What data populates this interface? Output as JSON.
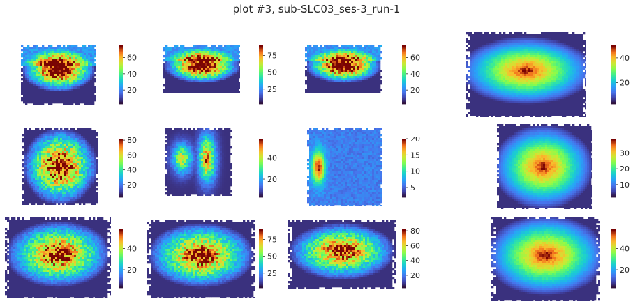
{
  "title": "plot #3, sub-SLC03_ses-3_run-1",
  "colormap": "turbo",
  "chart_data": [
    {
      "type": "heatmap",
      "title": "",
      "colorbar_range": [
        3,
        75
      ],
      "colorbar_ticks": [
        20,
        40,
        60
      ],
      "shape": "sagittal"
    },
    {
      "type": "heatmap",
      "title": "",
      "colorbar_range": [
        3,
        90
      ],
      "colorbar_ticks": [
        25,
        50,
        75
      ],
      "shape": "sagittal"
    },
    {
      "type": "heatmap",
      "title": "",
      "colorbar_range": [
        3,
        75
      ],
      "colorbar_ticks": [
        20,
        40,
        60
      ],
      "shape": "sagittal"
    },
    {
      "type": "heatmap",
      "title": "",
      "colorbar_range": [
        3,
        50
      ],
      "colorbar_ticks": [
        20,
        40
      ],
      "shape": "sagittal-blur"
    },
    {
      "type": "heatmap",
      "title": "",
      "colorbar_range": [
        3,
        82
      ],
      "colorbar_ticks": [
        20,
        40,
        60,
        80
      ],
      "shape": "coronal"
    },
    {
      "type": "heatmap",
      "title": "",
      "colorbar_range": [
        3,
        58
      ],
      "colorbar_ticks": [
        20,
        40
      ],
      "shape": "split"
    },
    {
      "type": "heatmap",
      "title": "",
      "colorbar_range": [
        2,
        20
      ],
      "colorbar_ticks": [
        5,
        10,
        15,
        20
      ],
      "shape": "sparse"
    },
    {
      "type": "heatmap",
      "title": "",
      "colorbar_range": [
        2,
        39
      ],
      "colorbar_ticks": [
        10,
        20,
        30
      ],
      "shape": "coronal-blur"
    },
    {
      "type": "heatmap",
      "title": "",
      "colorbar_range": [
        3,
        58
      ],
      "colorbar_ticks": [
        20,
        40
      ],
      "shape": "axial"
    },
    {
      "type": "heatmap",
      "title": "",
      "colorbar_range": [
        3,
        90
      ],
      "colorbar_ticks": [
        25,
        50,
        75
      ],
      "shape": "axial"
    },
    {
      "type": "heatmap",
      "title": "",
      "colorbar_range": [
        3,
        82
      ],
      "colorbar_ticks": [
        20,
        40,
        60,
        80
      ],
      "shape": "axial"
    },
    {
      "type": "heatmap",
      "title": "",
      "colorbar_range": [
        3,
        58
      ],
      "colorbar_ticks": [
        20,
        40
      ],
      "shape": "axial-blur"
    }
  ]
}
